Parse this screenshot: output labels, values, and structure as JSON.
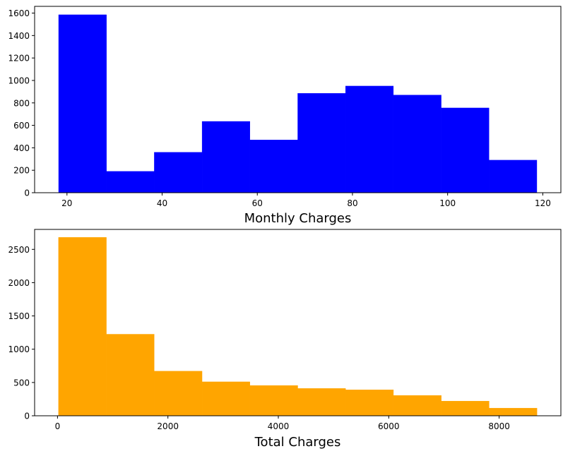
{
  "chart_data": [
    {
      "type": "bar",
      "chart_kind": "histogram",
      "title": "",
      "xlabel": "Monthly Charges",
      "ylabel": "",
      "color": "#0000ff",
      "bin_edges": [
        18.25,
        28.3,
        38.35,
        48.4,
        58.45,
        68.5,
        78.55,
        88.6,
        98.65,
        108.7,
        118.75
      ],
      "values": [
        1585,
        190,
        360,
        635,
        470,
        885,
        950,
        870,
        755,
        290
      ],
      "xlim": [
        13.2,
        123.8
      ],
      "ylim": [
        0,
        1660
      ],
      "xticks": [
        20,
        40,
        60,
        80,
        100,
        120
      ],
      "yticks": [
        0,
        200,
        400,
        600,
        800,
        1000,
        1200,
        1400,
        1600
      ],
      "grid": false,
      "legend": "none"
    },
    {
      "type": "bar",
      "chart_kind": "histogram",
      "title": "",
      "xlabel": "Total Charges",
      "ylabel": "",
      "color": "#ffa500",
      "bin_edges": [
        18.8,
        885.4,
        1752.0,
        2618.6,
        3485.2,
        4351.8,
        5218.4,
        6085.0,
        6951.6,
        7818.2,
        8684.8
      ],
      "values": [
        2680,
        1225,
        670,
        510,
        455,
        410,
        390,
        305,
        220,
        115
      ],
      "xlim": [
        -414.5,
        9118.1
      ],
      "ylim": [
        0,
        2800
      ],
      "xticks": [
        0,
        2000,
        4000,
        6000,
        8000
      ],
      "yticks": [
        0,
        500,
        1000,
        1500,
        2000,
        2500
      ],
      "grid": false,
      "legend": "none"
    }
  ]
}
